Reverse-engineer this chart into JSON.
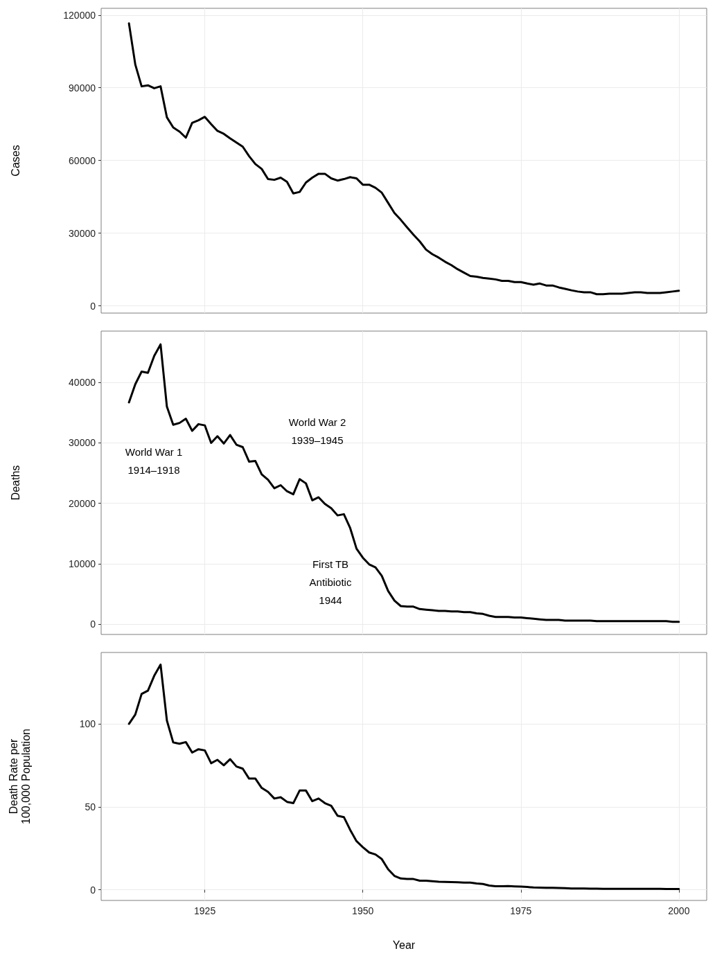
{
  "chart_data": [
    {
      "type": "line",
      "ylabel": "Cases",
      "color": "#000000",
      "grid": true,
      "tick_labels": "y",
      "line_style": "solid",
      "x": [
        1913,
        1914,
        1915,
        1916,
        1917,
        1918,
        1919,
        1920,
        1921,
        1922,
        1923,
        1924,
        1925,
        1926,
        1927,
        1928,
        1929,
        1930,
        1931,
        1932,
        1933,
        1934,
        1935,
        1936,
        1937,
        1938,
        1939,
        1940,
        1941,
        1942,
        1943,
        1944,
        1945,
        1946,
        1947,
        1948,
        1949,
        1950,
        1951,
        1952,
        1953,
        1954,
        1955,
        1956,
        1957,
        1958,
        1959,
        1960,
        1961,
        1962,
        1963,
        1964,
        1965,
        1966,
        1967,
        1968,
        1969,
        1970,
        1971,
        1972,
        1973,
        1974,
        1975,
        1976,
        1977,
        1978,
        1979,
        1980,
        1981,
        1982,
        1983,
        1984,
        1985,
        1986,
        1987,
        1988,
        1989,
        1990,
        1991,
        1992,
        1993,
        1994,
        1995,
        1996,
        1997,
        1998,
        1999,
        2000
      ],
      "values": [
        116600,
        99600,
        90600,
        91000,
        89800,
        90600,
        77800,
        73600,
        71900,
        69400,
        75500,
        76600,
        78000,
        75000,
        72200,
        71000,
        69100,
        67400,
        65700,
        61800,
        58500,
        56500,
        52300,
        52000,
        52900,
        51200,
        46400,
        47000,
        50900,
        52900,
        54500,
        54500,
        52600,
        51700,
        52300,
        53100,
        52600,
        50000,
        50000,
        48700,
        46700,
        42500,
        38300,
        35500,
        32400,
        29400,
        26600,
        23200,
        21300,
        19900,
        18200,
        16800,
        15100,
        13700,
        12300,
        12000,
        11500,
        11200,
        10900,
        10300,
        10300,
        9800,
        9800,
        9200,
        8700,
        9200,
        8400,
        8400,
        7600,
        7000,
        6400,
        5900,
        5600,
        5600,
        4800,
        4800,
        5000,
        5000,
        5000,
        5300,
        5600,
        5600,
        5300,
        5300,
        5300,
        5600,
        5900,
        6200
      ],
      "xlim": [
        1908.6,
        2004.4
      ],
      "xticks": [
        1925,
        1950,
        1975,
        2000
      ],
      "ylim": [
        -3000,
        122800
      ],
      "yticks": [
        0,
        30000,
        60000,
        90000,
        120000
      ]
    },
    {
      "type": "line",
      "ylabel": "Deaths",
      "color": "#000000",
      "grid": true,
      "tick_labels": "y",
      "line_style": "solid",
      "x": [
        1913,
        1914,
        1915,
        1916,
        1917,
        1918,
        1919,
        1920,
        1921,
        1922,
        1923,
        1924,
        1925,
        1926,
        1927,
        1928,
        1929,
        1930,
        1931,
        1932,
        1933,
        1934,
        1935,
        1936,
        1937,
        1938,
        1939,
        1940,
        1941,
        1942,
        1943,
        1944,
        1945,
        1946,
        1947,
        1948,
        1949,
        1950,
        1951,
        1952,
        1953,
        1954,
        1955,
        1956,
        1957,
        1958,
        1959,
        1960,
        1961,
        1962,
        1963,
        1964,
        1965,
        1966,
        1967,
        1968,
        1969,
        1970,
        1971,
        1972,
        1973,
        1974,
        1975,
        1976,
        1977,
        1978,
        1979,
        1980,
        1981,
        1982,
        1983,
        1984,
        1985,
        1986,
        1987,
        1988,
        1989,
        1990,
        1991,
        1992,
        1993,
        1994,
        1995,
        1996,
        1997,
        1998,
        1999,
        2000
      ],
      "values": [
        36700,
        39700,
        41800,
        41600,
        44400,
        46300,
        36000,
        33000,
        33300,
        34000,
        32000,
        33100,
        32900,
        30000,
        31100,
        29900,
        31300,
        29700,
        29300,
        26900,
        27000,
        24800,
        23900,
        22500,
        23000,
        22000,
        21500,
        24000,
        23300,
        20500,
        21000,
        19900,
        19200,
        18000,
        18200,
        15900,
        12500,
        11000,
        9900,
        9400,
        8000,
        5500,
        3900,
        3000,
        2900,
        2900,
        2500,
        2400,
        2300,
        2200,
        2200,
        2100,
        2100,
        2000,
        2000,
        1800,
        1700,
        1400,
        1200,
        1200,
        1200,
        1100,
        1100,
        1000,
        900,
        800,
        700,
        700,
        700,
        600,
        600,
        600,
        600,
        600,
        500,
        500,
        500,
        500,
        500,
        500,
        500,
        500,
        500,
        500,
        500,
        500,
        400,
        400
      ],
      "xlim": [
        1908.6,
        2004.4
      ],
      "xticks": [
        1925,
        1950,
        1975,
        2000
      ],
      "ylim": [
        -1700,
        48500
      ],
      "yticks": [
        0,
        10000,
        20000,
        30000,
        40000
      ],
      "annotations": [
        "World War 1\n1914–1918",
        "World War 2\n1939–1945",
        "First TB\nAntibiotic\n1944"
      ]
    },
    {
      "type": "line",
      "ylabel": "Death Rate per\n100,000 Population",
      "xlabel": "Year",
      "color": "#000000",
      "grid": true,
      "line_style": "solid",
      "x": [
        1913,
        1914,
        1915,
        1916,
        1917,
        1918,
        1919,
        1920,
        1921,
        1922,
        1923,
        1924,
        1925,
        1926,
        1927,
        1928,
        1929,
        1930,
        1931,
        1932,
        1933,
        1934,
        1935,
        1936,
        1937,
        1938,
        1939,
        1940,
        1941,
        1942,
        1943,
        1944,
        1945,
        1946,
        1947,
        1948,
        1949,
        1950,
        1951,
        1952,
        1953,
        1954,
        1955,
        1956,
        1957,
        1958,
        1959,
        1960,
        1961,
        1962,
        1963,
        1964,
        1965,
        1966,
        1967,
        1968,
        1969,
        1970,
        1971,
        1972,
        1973,
        1974,
        1975,
        1976,
        1977,
        1978,
        1979,
        1980,
        1981,
        1982,
        1983,
        1984,
        1985,
        1986,
        1987,
        1988,
        1989,
        1990,
        1991,
        1992,
        1993,
        1994,
        1995,
        1996,
        1997,
        1998,
        1999,
        2000
      ],
      "values": [
        100,
        105.6,
        118,
        120,
        129,
        135.7,
        102,
        88.8,
        88,
        89,
        82.7,
        84.7,
        84,
        76.3,
        78.3,
        75,
        78.7,
        74.3,
        73,
        67,
        67,
        61.4,
        59,
        55,
        55.8,
        53,
        52.2,
        59.8,
        59.8,
        53.4,
        55,
        52.2,
        50.6,
        44.6,
        43.8,
        36.1,
        29.3,
        25.7,
        22.5,
        21.3,
        18.5,
        12.4,
        8.4,
        6.8,
        6.5,
        6.5,
        5.5,
        5.5,
        5.2,
        4.9,
        4.8,
        4.7,
        4.6,
        4.3,
        4.3,
        3.8,
        3.5,
        2.6,
        2.2,
        2.2,
        2.3,
        2.1,
        1.9,
        1.7,
        1.4,
        1.3,
        1.2,
        1.2,
        1.1,
        1.0,
        0.8,
        0.8,
        0.8,
        0.7,
        0.7,
        0.6,
        0.6,
        0.6,
        0.6,
        0.6,
        0.6,
        0.6,
        0.6,
        0.6,
        0.6,
        0.5,
        0.5,
        0.5
      ],
      "xlim": [
        1908.6,
        2004.4
      ],
      "xticks": [
        1925,
        1950,
        1975,
        2000
      ],
      "ylim": [
        -6.4,
        143
      ],
      "yticks": [
        0,
        50,
        100
      ]
    }
  ]
}
